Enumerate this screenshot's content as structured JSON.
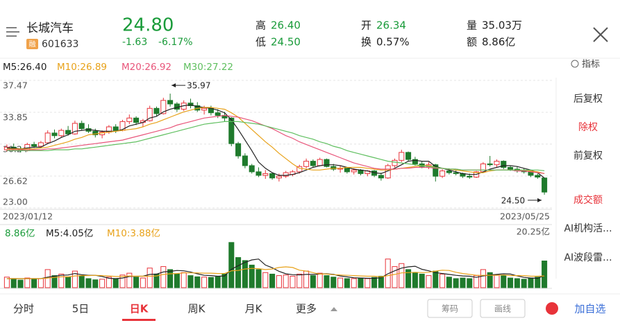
{
  "header": {
    "name": "长城汽车",
    "badge": "融",
    "code": "601633",
    "price": "24.80",
    "change": "-1.63",
    "change_pct": "-6.17%",
    "stats": [
      {
        "label": "高",
        "value": "26.40"
      },
      {
        "label": "低",
        "value": "24.50"
      },
      {
        "label": "开",
        "value": "26.34"
      },
      {
        "label": "换",
        "value": "0.57%"
      },
      {
        "label": "量",
        "value": "35.03万"
      },
      {
        "label": "额",
        "value": "8.86亿"
      }
    ]
  },
  "ma_legend": [
    "M5:26.40",
    "M10:26.89",
    "M20:26.92",
    "M30:27.22"
  ],
  "vol_legend": [
    "8.86亿",
    "M5:4.05亿",
    "M10:3.88亿"
  ],
  "indicator": "指标",
  "sidebar": [
    "后复权",
    "除权",
    "前复权",
    "成交额",
    "AI机构活...",
    "AI波段雷..."
  ],
  "tabs": [
    "分时",
    "5日",
    "日K",
    "周K",
    "月K",
    "更多"
  ],
  "buttons": [
    "筹码",
    "画线",
    "加自选"
  ],
  "chart_data": {
    "type": "candlestick",
    "x_labels": [
      "2023/01/12",
      "2023/05/25"
    ],
    "annotations": [
      "35.97",
      "24.50"
    ],
    "ylim": [
      23,
      37.47
    ],
    "yticks": [
      37.47,
      33.85,
      30.24,
      26.62,
      {
        "value": 23,
        "label": "23.00"
      }
    ],
    "up_color": "#e8333a",
    "down_color": "#1f7a2c",
    "open": [
      29.6,
      29.9,
      29.7,
      29.5,
      30.2,
      30.0,
      30.4,
      31.5,
      31.2,
      31.8,
      31.4,
      32.6,
      32.0,
      31.7,
      31.3,
      31.6,
      32.2,
      31.8,
      32.8,
      33.2,
      32.7,
      32.9,
      34.3,
      33.7,
      35.2,
      34.8,
      34.2,
      34.9,
      34.6,
      34.1,
      34.3,
      33.8,
      33.5,
      33.2,
      30.3,
      28.9,
      27.8,
      27.1,
      26.7,
      26.9,
      26.4,
      26.6,
      26.8,
      27.1,
      27.7,
      28.3,
      27.8,
      28.5,
      27.7,
      27.4,
      27.5,
      27.1,
      27.3,
      26.9,
      27.2,
      26.7,
      26.4,
      27.8,
      28.4,
      29.3,
      28.5,
      28.0,
      27.7,
      27.9,
      26.6,
      27.2,
      27.0,
      26.9,
      26.6,
      26.5,
      27.1,
      28.0,
      27.9,
      28.3,
      27.6,
      27.4,
      27.2,
      27.1,
      26.7,
      26.4
    ],
    "high": [
      30.2,
      30.3,
      30.0,
      30.4,
      30.5,
      30.6,
      31.8,
      31.9,
      32.0,
      32.3,
      32.9,
      32.9,
      32.5,
      32.0,
      31.8,
      32.4,
      32.5,
      33.0,
      33.6,
      33.4,
      33.1,
      34.6,
      34.5,
      35.5,
      35.97,
      35.0,
      35.2,
      35.4,
      35.0,
      34.6,
      34.6,
      34.2,
      33.9,
      33.3,
      30.5,
      29.2,
      28.0,
      27.6,
      27.3,
      27.0,
      26.9,
      27.2,
      27.3,
      27.9,
      28.6,
      28.5,
      28.7,
      28.6,
      28.0,
      27.8,
      27.6,
      27.5,
      27.4,
      27.3,
      27.3,
      27.0,
      28.0,
      28.6,
      29.6,
      29.4,
      28.8,
      28.3,
      28.2,
      28.0,
      27.4,
      27.5,
      27.3,
      27.0,
      26.9,
      27.2,
      28.2,
      28.9,
      28.5,
      28.4,
      27.8,
      27.7,
      27.5,
      27.2,
      26.9,
      26.4
    ],
    "low": [
      29.4,
      29.5,
      29.3,
      29.4,
      29.8,
      29.9,
      30.3,
      30.9,
      31.0,
      31.2,
      31.3,
      31.8,
      31.5,
      31.0,
      30.9,
      31.4,
      31.5,
      31.7,
      32.5,
      32.4,
      32.2,
      32.8,
      33.4,
      33.6,
      34.5,
      33.9,
      34.0,
      34.3,
      33.9,
      33.6,
      33.5,
      33.2,
      32.8,
      30.0,
      28.6,
      27.5,
      26.9,
      26.5,
      26.3,
      26.2,
      26.0,
      26.4,
      26.6,
      26.9,
      27.5,
      27.6,
      27.7,
      27.6,
      27.2,
      27.0,
      26.9,
      26.8,
      26.7,
      26.6,
      26.5,
      26.1,
      26.3,
      27.6,
      28.2,
      28.3,
      27.8,
      27.5,
      27.4,
      26.0,
      26.4,
      26.8,
      26.7,
      26.4,
      26.3,
      26.4,
      27.0,
      27.7,
      27.6,
      27.4,
      27.2,
      27.0,
      26.9,
      26.5,
      26.3,
      24.5
    ],
    "close": [
      29.9,
      29.7,
      29.5,
      30.2,
      30.0,
      30.4,
      31.5,
      31.2,
      31.8,
      31.4,
      32.6,
      32.0,
      31.7,
      31.3,
      31.6,
      32.2,
      31.8,
      32.8,
      33.2,
      32.7,
      32.9,
      34.3,
      33.7,
      35.2,
      34.8,
      34.2,
      34.9,
      34.6,
      34.1,
      34.3,
      33.8,
      33.5,
      33.2,
      30.3,
      28.9,
      27.8,
      27.1,
      26.7,
      26.9,
      26.4,
      26.6,
      27.0,
      27.1,
      27.7,
      28.3,
      27.8,
      28.5,
      27.7,
      27.4,
      27.5,
      27.1,
      27.3,
      26.9,
      27.2,
      26.7,
      26.4,
      27.8,
      28.4,
      29.3,
      28.5,
      28.0,
      27.7,
      27.9,
      26.6,
      27.2,
      27.0,
      26.9,
      26.6,
      26.5,
      27.1,
      28.0,
      27.9,
      28.3,
      27.6,
      27.4,
      27.2,
      27.1,
      26.7,
      26.5,
      24.8
    ],
    "series": [
      {
        "color": "#222222",
        "values": [
          29.8,
          29.8,
          29.7,
          29.8,
          29.9,
          29.9,
          30.3,
          30.6,
          31.0,
          31.3,
          31.7,
          31.8,
          31.9,
          31.8,
          31.7,
          31.7,
          31.7,
          31.9,
          32.3,
          32.5,
          32.7,
          33.2,
          33.4,
          33.9,
          34.2,
          34.4,
          34.6,
          34.7,
          34.5,
          34.4,
          34.3,
          34.1,
          33.8,
          33.0,
          31.9,
          30.7,
          29.5,
          28.2,
          27.5,
          27.0,
          26.7,
          26.7,
          26.8,
          27.0,
          27.3,
          27.6,
          27.8,
          27.9,
          27.9,
          27.8,
          27.6,
          27.4,
          27.3,
          27.2,
          27.0,
          26.9,
          27.2,
          27.5,
          27.9,
          28.3,
          28.4,
          28.3,
          28.3,
          27.7,
          27.5,
          27.3,
          27.1,
          26.9,
          26.8,
          26.8,
          27.1,
          27.4,
          27.6,
          27.8,
          27.8,
          27.7,
          27.5,
          27.3,
          27.0,
          26.4
        ]
      },
      {
        "color": "#e8a21a",
        "values": [
          29.7,
          29.7,
          29.7,
          29.7,
          29.7,
          29.8,
          29.9,
          30.1,
          30.3,
          30.5,
          30.8,
          31.0,
          31.3,
          31.4,
          31.5,
          31.6,
          31.7,
          31.8,
          31.9,
          32.0,
          32.2,
          32.5,
          32.7,
          33.0,
          33.3,
          33.6,
          33.9,
          34.1,
          34.3,
          34.4,
          34.4,
          34.3,
          34.2,
          33.8,
          33.3,
          32.6,
          31.9,
          31.2,
          30.5,
          29.9,
          29.2,
          28.6,
          28.0,
          27.5,
          27.4,
          27.3,
          27.3,
          27.4,
          27.5,
          27.5,
          27.6,
          27.6,
          27.6,
          27.5,
          27.4,
          27.3,
          27.3,
          27.4,
          27.5,
          27.6,
          27.7,
          27.8,
          27.8,
          27.6,
          27.5,
          27.4,
          27.3,
          27.2,
          27.1,
          27.0,
          27.0,
          27.2,
          27.3,
          27.3,
          27.3,
          27.3,
          27.3,
          27.2,
          27.1,
          26.89
        ]
      },
      {
        "color": "#e8557a",
        "values": [
          29.6,
          29.6,
          29.6,
          29.6,
          29.6,
          29.6,
          29.7,
          29.7,
          29.8,
          29.9,
          30.0,
          30.1,
          30.2,
          30.3,
          30.4,
          30.5,
          30.6,
          30.7,
          30.9,
          31.1,
          31.3,
          31.5,
          31.7,
          31.9,
          32.1,
          32.4,
          32.6,
          32.8,
          33.0,
          33.2,
          33.3,
          33.4,
          33.5,
          33.4,
          33.3,
          33.1,
          32.9,
          32.6,
          32.3,
          32.0,
          31.6,
          31.2,
          30.9,
          30.5,
          30.2,
          29.9,
          29.6,
          29.3,
          29.0,
          28.7,
          28.4,
          28.1,
          27.9,
          27.7,
          27.5,
          27.4,
          27.4,
          27.4,
          27.5,
          27.5,
          27.6,
          27.6,
          27.6,
          27.5,
          27.5,
          27.4,
          27.4,
          27.3,
          27.3,
          27.3,
          27.3,
          27.3,
          27.3,
          27.3,
          27.3,
          27.2,
          27.2,
          27.1,
          27.0,
          26.92
        ]
      },
      {
        "color": "#5fbf5f",
        "values": [
          29.5,
          29.5,
          29.5,
          29.5,
          29.5,
          29.5,
          29.5,
          29.6,
          29.6,
          29.6,
          29.7,
          29.7,
          29.8,
          29.9,
          30.0,
          30.1,
          30.2,
          30.3,
          30.4,
          30.5,
          30.7,
          30.9,
          31.1,
          31.3,
          31.5,
          31.7,
          31.9,
          32.1,
          32.3,
          32.5,
          32.6,
          32.7,
          32.8,
          32.8,
          32.8,
          32.7,
          32.6,
          32.5,
          32.3,
          32.1,
          31.9,
          31.7,
          31.5,
          31.2,
          31.0,
          30.8,
          30.5,
          30.3,
          30.0,
          29.8,
          29.5,
          29.3,
          29.1,
          28.9,
          28.7,
          28.5,
          28.3,
          28.2,
          28.1,
          28.0,
          27.9,
          27.8,
          27.7,
          27.6,
          27.5,
          27.4,
          27.4,
          27.3,
          27.3,
          27.3,
          27.3,
          27.3,
          27.3,
          27.3,
          27.3,
          27.3,
          27.3,
          27.3,
          27.3,
          27.22
        ]
      }
    ],
    "volumes": [
      3.5,
      3.0,
      2.5,
      3.2,
      2.8,
      3.0,
      6.0,
      4.0,
      4.5,
      3.6,
      5.5,
      3.8,
      3.0,
      2.6,
      2.8,
      3.5,
      3.0,
      4.2,
      4.8,
      3.5,
      3.2,
      6.5,
      4.5,
      7.0,
      6.0,
      4.5,
      5.0,
      4.0,
      3.6,
      3.5,
      3.4,
      3.6,
      4.5,
      15.0,
      10.0,
      9.0,
      7.5,
      6.0,
      5.0,
      4.5,
      4.0,
      4.2,
      3.8,
      4.5,
      5.5,
      4.0,
      4.8,
      4.0,
      3.5,
      3.2,
      3.0,
      3.0,
      3.2,
      3.0,
      3.4,
      3.8,
      9.5,
      7.0,
      8.0,
      6.0,
      5.0,
      4.5,
      4.0,
      5.5,
      4.5,
      3.5,
      3.0,
      3.2,
      3.0,
      4.0,
      6.0,
      5.0,
      4.2,
      4.0,
      3.2,
      3.0,
      2.8,
      3.2,
      3.5,
      8.86
    ],
    "vol_ylim": [
      0,
      20.25
    ],
    "vol_yticks": [
      {
        "value": 20.25,
        "label": "20.25亿"
      }
    ],
    "vol_series": [
      {
        "color": "#222222",
        "values": [
          3.0,
          3.0,
          3.0,
          3.0,
          3.0,
          3.0,
          3.5,
          3.8,
          4.1,
          4.2,
          4.7,
          4.3,
          4.1,
          4.1,
          3.7,
          3.1,
          3.0,
          3.2,
          3.7,
          3.8,
          3.8,
          4.4,
          4.5,
          5.2,
          5.4,
          5.7,
          5.6,
          5.2,
          4.6,
          4.1,
          4.0,
          3.8,
          3.9,
          6.1,
          7.3,
          8.4,
          9.2,
          9.5,
          7.5,
          6.6,
          5.4,
          4.6,
          4.3,
          4.2,
          4.4,
          4.4,
          4.5,
          4.6,
          4.4,
          3.9,
          3.6,
          3.3,
          3.2,
          3.1,
          3.1,
          3.3,
          4.6,
          5.6,
          6.5,
          6.9,
          7.1,
          6.1,
          5.6,
          5.0,
          4.7,
          4.4,
          4.1,
          3.9,
          3.8,
          3.4,
          3.9,
          4.2,
          4.4,
          4.6,
          4.5,
          3.9,
          3.4,
          3.2,
          3.1,
          4.05
        ]
      },
      {
        "color": "#e8a21a",
        "values": [
          3.0,
          3.0,
          3.0,
          3.0,
          3.0,
          3.0,
          3.2,
          3.4,
          3.6,
          3.6,
          3.9,
          4.0,
          4.0,
          4.1,
          4.0,
          3.9,
          3.7,
          3.7,
          3.9,
          3.8,
          3.8,
          3.8,
          3.9,
          4.4,
          4.6,
          4.7,
          4.9,
          4.9,
          4.9,
          4.8,
          4.8,
          4.7,
          4.7,
          5.6,
          5.7,
          6.2,
          6.4,
          6.3,
          6.0,
          6.2,
          6.7,
          6.9,
          6.7,
          5.8,
          5.5,
          5.0,
          4.5,
          4.5,
          4.3,
          4.2,
          4.1,
          4.0,
          3.9,
          3.8,
          3.8,
          3.6,
          4.0,
          4.4,
          4.9,
          5.0,
          5.1,
          5.0,
          5.1,
          5.5,
          5.8,
          5.7,
          5.1,
          4.7,
          4.4,
          4.1,
          4.1,
          4.1,
          4.1,
          4.2,
          4.0,
          4.0,
          4.0,
          3.8,
          3.8,
          3.88
        ]
      }
    ]
  }
}
